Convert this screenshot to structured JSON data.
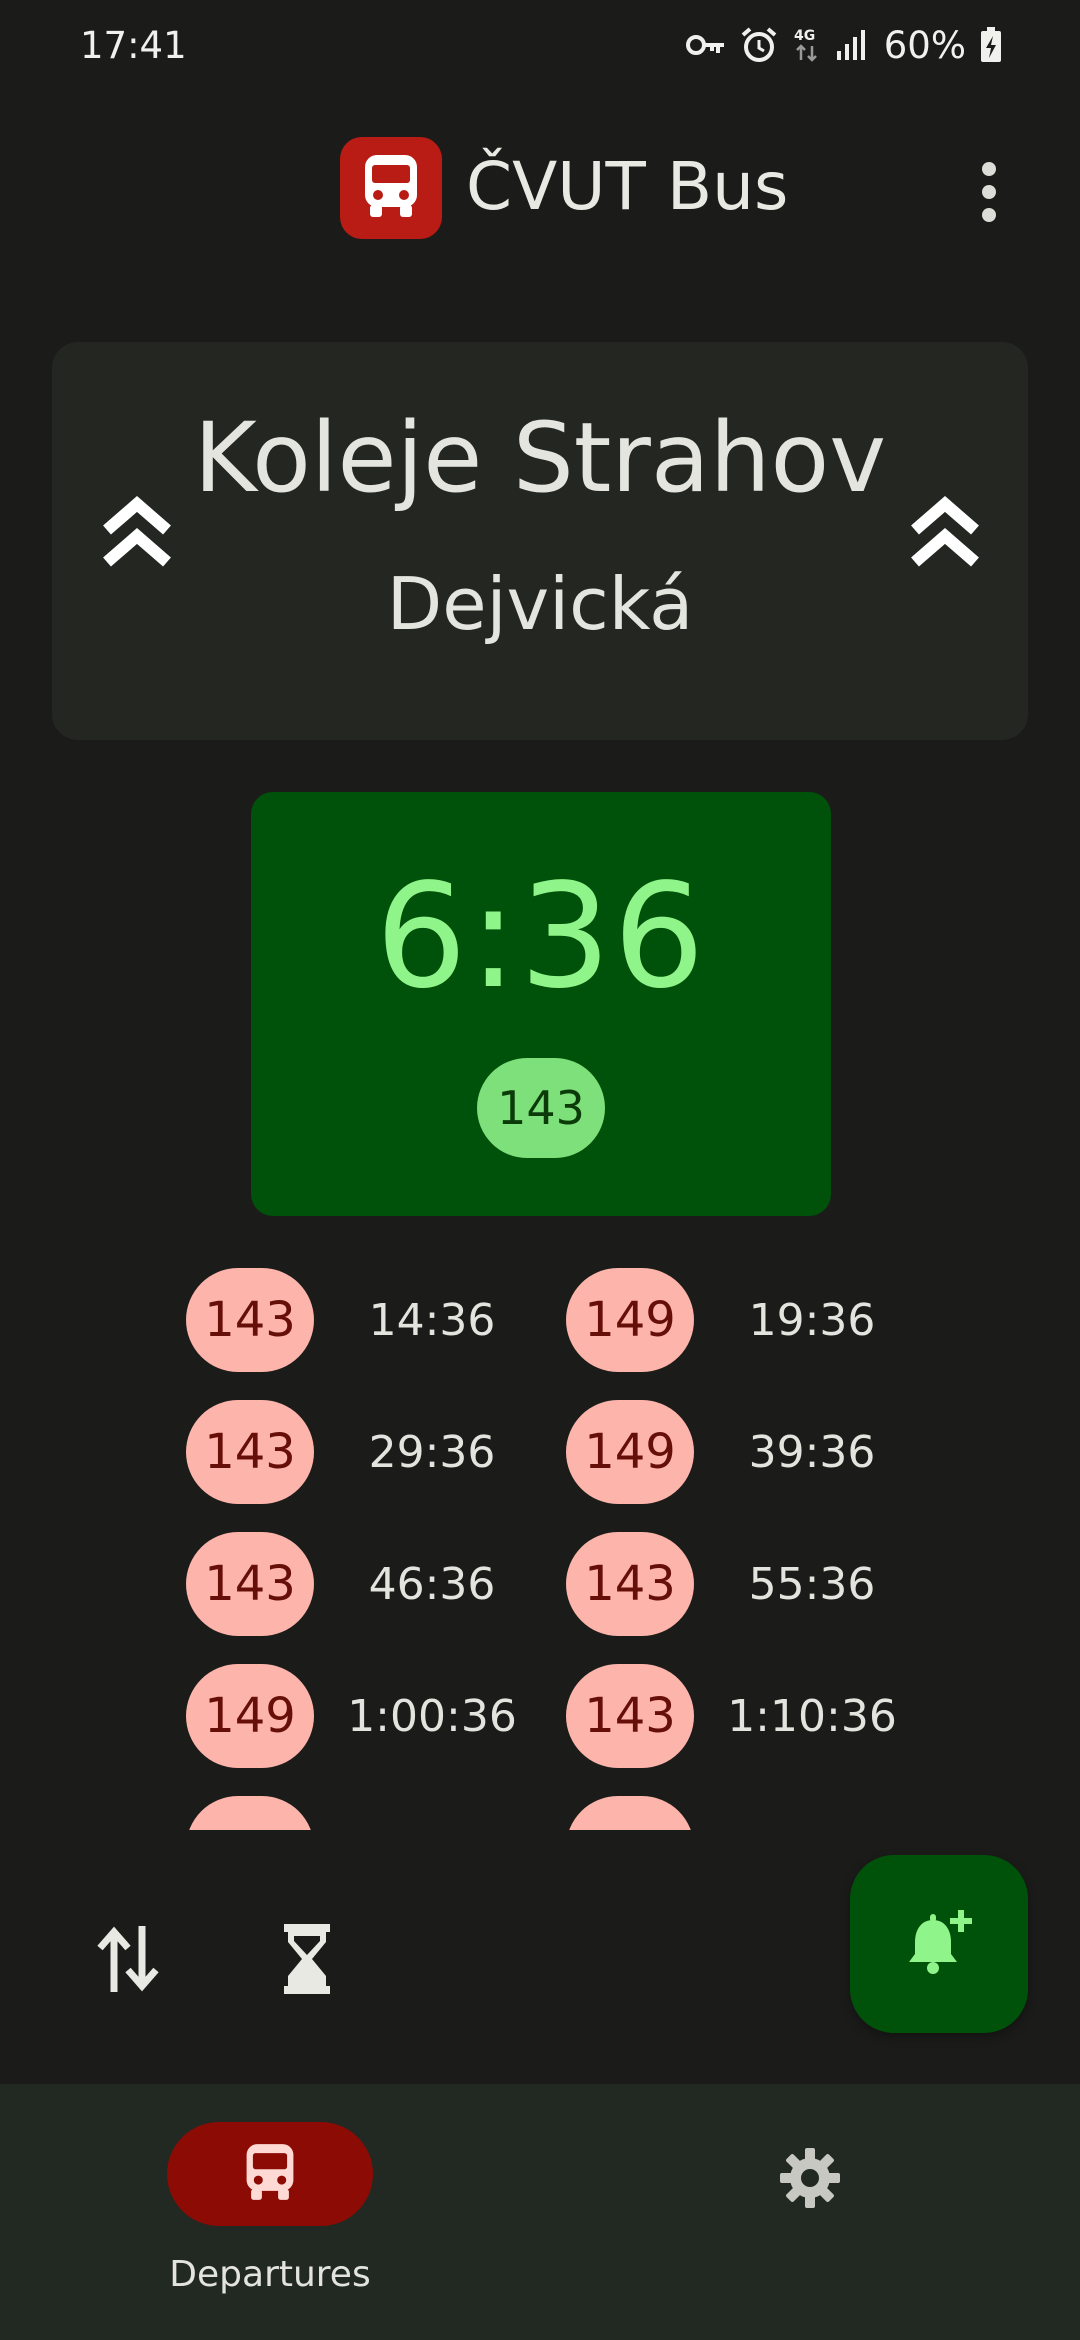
{
  "status_bar": {
    "time": "17:41",
    "network": "4G",
    "battery": "60%",
    "icons": [
      "vpn-key-icon",
      "alarm-icon",
      "network-4g-icon",
      "signal-icon",
      "battery-charging-icon"
    ]
  },
  "app_bar": {
    "title": "ČVUT Bus",
    "logo_icon": "bus-icon",
    "menu_icon": "more-vert-icon"
  },
  "direction": {
    "from": "Koleje Strahov",
    "to": "Dejvická",
    "swap_icons": [
      "double-chevron-up-icon",
      "double-chevron-up-icon"
    ]
  },
  "next_departure": {
    "countdown": "6:36",
    "line": "143"
  },
  "departures": [
    {
      "line": "143",
      "time": "14:36"
    },
    {
      "line": "149",
      "time": "19:36"
    },
    {
      "line": "143",
      "time": "29:36"
    },
    {
      "line": "149",
      "time": "39:36"
    },
    {
      "line": "143",
      "time": "46:36"
    },
    {
      "line": "143",
      "time": "55:36"
    },
    {
      "line": "149",
      "time": "1:00:36"
    },
    {
      "line": "143",
      "time": "1:10:36"
    },
    {
      "line": "",
      "time": ""
    },
    {
      "line": "",
      "time": ""
    }
  ],
  "actions": {
    "swap_icon": "swap-vert-icon",
    "timer_icon": "hourglass-icon",
    "fab_icon": "bell-plus-icon"
  },
  "bottom_nav": {
    "items": [
      {
        "label": "Departures",
        "icon": "bus-icon",
        "selected": true
      },
      {
        "label": "",
        "icon": "gear-icon",
        "selected": false
      }
    ]
  },
  "colors": {
    "background": "#1b1c1a",
    "card": "#242622",
    "next_card": "#00520a",
    "next_text": "#8ff58a",
    "next_badge": "#7de07a",
    "line_badge": "#fdb4aa",
    "line_badge_text": "#660f08",
    "nav_active": "#8d0b05",
    "logo": "#b91c14"
  }
}
